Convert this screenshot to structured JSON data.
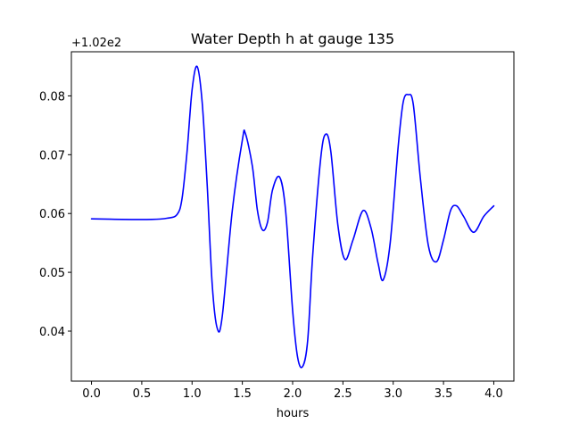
{
  "chart_data": {
    "type": "line",
    "title": "Water Depth h at gauge 135",
    "xlabel": "hours",
    "ylabel": "",
    "y_offset_text": "+1.02e2",
    "xlim": [
      -0.2,
      4.2
    ],
    "ylim": [
      0.0315,
      0.0875
    ],
    "xticks": [
      {
        "value": 0.0,
        "label": "0.0"
      },
      {
        "value": 0.5,
        "label": "0.5"
      },
      {
        "value": 1.0,
        "label": "1.0"
      },
      {
        "value": 1.5,
        "label": "1.5"
      },
      {
        "value": 2.0,
        "label": "2.0"
      },
      {
        "value": 2.5,
        "label": "2.5"
      },
      {
        "value": 3.0,
        "label": "3.0"
      },
      {
        "value": 3.5,
        "label": "3.5"
      },
      {
        "value": 4.0,
        "label": "4.0"
      }
    ],
    "yticks": [
      {
        "value": 0.04,
        "label": "0.04"
      },
      {
        "value": 0.05,
        "label": "0.05"
      },
      {
        "value": 0.06,
        "label": "0.06"
      },
      {
        "value": 0.07,
        "label": "0.07"
      },
      {
        "value": 0.08,
        "label": "0.08"
      }
    ],
    "grid": false,
    "series": [
      {
        "color": "#0000ff",
        "x": [
          0.0,
          0.3,
          0.6,
          0.75,
          0.85,
          0.9,
          0.95,
          1.0,
          1.05,
          1.1,
          1.15,
          1.2,
          1.25,
          1.3,
          1.4,
          1.5,
          1.53,
          1.6,
          1.65,
          1.7,
          1.75,
          1.8,
          1.87,
          1.93,
          2.0,
          2.05,
          2.1,
          2.15,
          2.2,
          2.28,
          2.33,
          2.38,
          2.45,
          2.52,
          2.6,
          2.7,
          2.78,
          2.85,
          2.9,
          2.97,
          3.05,
          3.1,
          3.15,
          3.2,
          3.27,
          3.35,
          3.43,
          3.5,
          3.57,
          3.63,
          3.7,
          3.8,
          3.9,
          4.0
        ],
        "y": [
          0.0591,
          0.059,
          0.059,
          0.0592,
          0.0598,
          0.0625,
          0.0705,
          0.081,
          0.085,
          0.079,
          0.065,
          0.048,
          0.0405,
          0.0425,
          0.0605,
          0.0725,
          0.0736,
          0.068,
          0.0605,
          0.0572,
          0.0585,
          0.064,
          0.0662,
          0.0605,
          0.0435,
          0.0355,
          0.034,
          0.0385,
          0.053,
          0.0695,
          0.0735,
          0.0705,
          0.058,
          0.0522,
          0.0555,
          0.0605,
          0.0575,
          0.0515,
          0.0487,
          0.055,
          0.0715,
          0.079,
          0.0802,
          0.0785,
          0.066,
          0.0545,
          0.0518,
          0.0555,
          0.0605,
          0.0613,
          0.0595,
          0.0568,
          0.0595,
          0.0613
        ]
      }
    ]
  }
}
